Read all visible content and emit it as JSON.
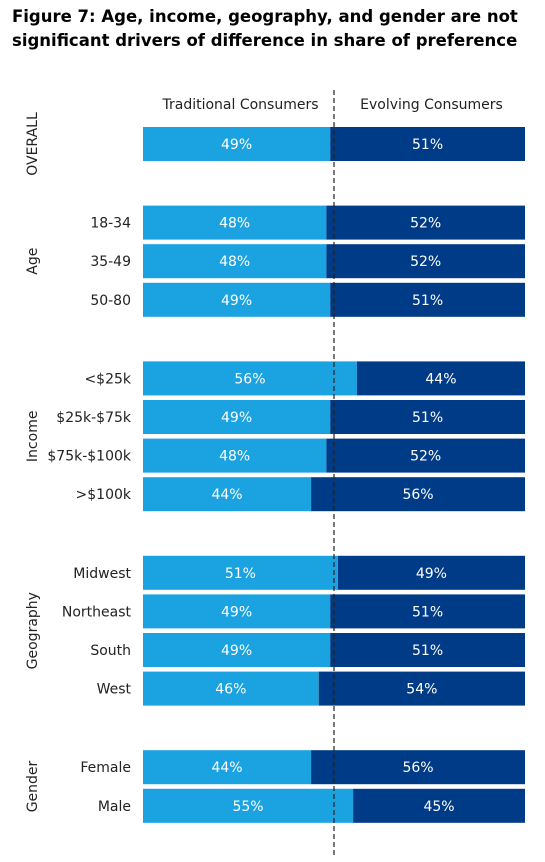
{
  "title": "Figure 7: Age, income, geography, and gender are not significant drivers of difference in share of preference",
  "colors": {
    "traditional": "#1ba2e0",
    "evolving": "#003b87",
    "divider": "#222222"
  },
  "chart_data": {
    "type": "bar",
    "orientation": "horizontal-stacked-100",
    "series": [
      {
        "name": "Traditional Consumers"
      },
      {
        "name": "Evolving Consumers"
      }
    ],
    "groups": [
      {
        "name": "OVERALL",
        "rows": [
          {
            "label": "",
            "values": [
              49,
              51
            ]
          }
        ]
      },
      {
        "name": "Age",
        "rows": [
          {
            "label": "18-34",
            "values": [
              48,
              52
            ]
          },
          {
            "label": "35-49",
            "values": [
              48,
              52
            ]
          },
          {
            "label": "50-80",
            "values": [
              49,
              51
            ]
          }
        ]
      },
      {
        "name": "Income",
        "rows": [
          {
            "label": "<$25k",
            "values": [
              56,
              44
            ]
          },
          {
            "label": "$25k-$75k",
            "values": [
              49,
              51
            ]
          },
          {
            "label": "$75k-$100k",
            "values": [
              48,
              52
            ]
          },
          {
            "label": ">$100k",
            "values": [
              44,
              56
            ]
          }
        ]
      },
      {
        "name": "Geography",
        "rows": [
          {
            "label": "Midwest",
            "values": [
              51,
              49
            ]
          },
          {
            "label": "Northeast",
            "values": [
              49,
              51
            ]
          },
          {
            "label": "South",
            "values": [
              49,
              51
            ]
          },
          {
            "label": "West",
            "values": [
              46,
              54
            ]
          }
        ]
      },
      {
        "name": "Gender",
        "rows": [
          {
            "label": "Female",
            "values": [
              44,
              56
            ]
          },
          {
            "label": "Male",
            "values": [
              55,
              45
            ]
          }
        ]
      }
    ],
    "value_suffix": "%",
    "xlim": [
      0,
      100
    ],
    "reference_line": 50
  }
}
